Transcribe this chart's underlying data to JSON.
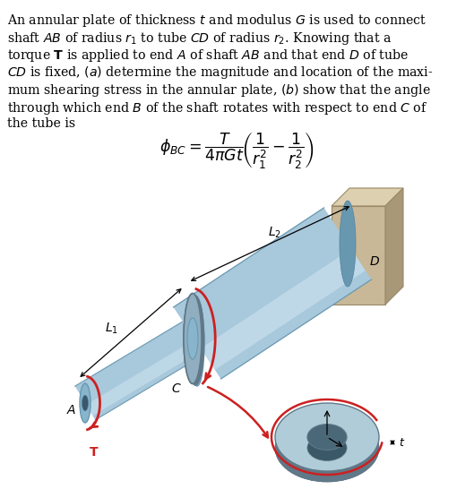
{
  "background_color": "#ffffff",
  "figsize": [
    5.29,
    5.56
  ],
  "dpi": 100,
  "text_fontsize": 10.2,
  "formula_fontsize": 12.5,
  "steel_blue": "#a8c8dc",
  "steel_blue_dark": "#6898b0",
  "steel_blue_light": "#c8e0ec",
  "steel_blue_mid": "#88b4cc",
  "steel_dark2": "#5080a0",
  "tan_wall": "#c8b898",
  "tan_wall_dark": "#a89878",
  "tan_wall_light": "#ddd0b0",
  "gray_ring": "#90aec0",
  "gray_ring_dark": "#607888",
  "gray_ring_light": "#b0ccd8",
  "red_arrow": "#cc2020"
}
